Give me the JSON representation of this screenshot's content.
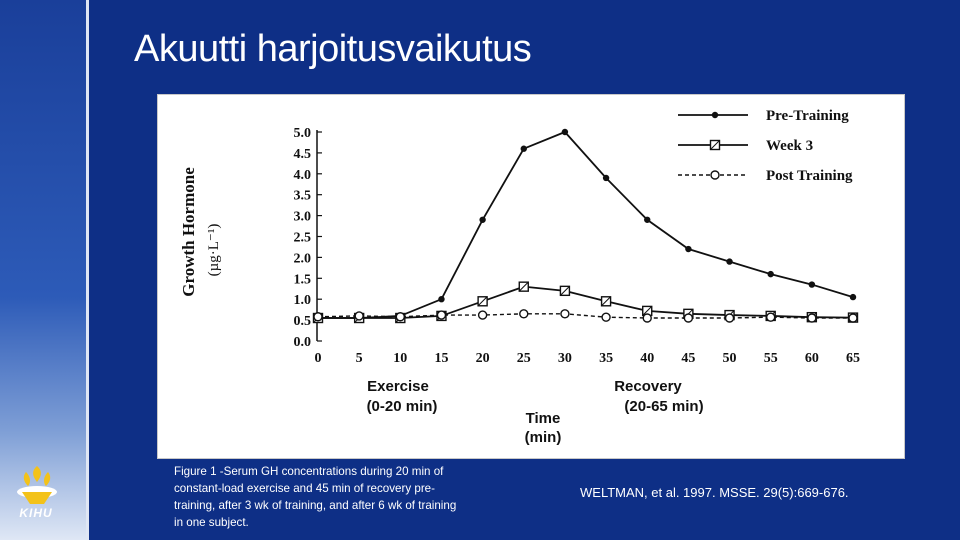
{
  "slide": {
    "title": "Akuutti harjoitusvaikutus",
    "caption": "Figure 1 -Serum GH concentrations during 20 min of constant-load exercise and 45 min of recovery pre-training, after 3 wk of training, and after 6 wk of training in one subject.",
    "citation": "WELTMAN, et al. 1997. MSSE. 29(5):669-676.",
    "logo_text": "KIHU"
  },
  "colors": {
    "background": "#0e2f86",
    "text": "#ffffff",
    "plot_ink": "#111111"
  },
  "chart_data": {
    "type": "line",
    "ylabel": "Growth Hormone",
    "yunit": "(µg·L⁻¹)",
    "xlabel": "Time",
    "xunit": "(min)",
    "annotations": [
      {
        "line1": "Exercise",
        "line2": "(0-20 min)"
      },
      {
        "line1": "Recovery",
        "line2": "(20-65 min)"
      }
    ],
    "x": [
      0,
      5,
      10,
      15,
      20,
      25,
      30,
      35,
      40,
      45,
      50,
      55,
      60,
      65
    ],
    "xticks": [
      "0",
      "5",
      "10",
      "15",
      "20",
      "25",
      "30",
      "35",
      "40",
      "45",
      "50",
      "55",
      "60",
      "65"
    ],
    "yticks": [
      "0.0",
      "0.5",
      "1.0",
      "1.5",
      "2.0",
      "2.5",
      "3.0",
      "3.5",
      "4.0",
      "4.5",
      "5.0"
    ],
    "ylim": [
      0,
      5
    ],
    "xlim": [
      0,
      65
    ],
    "legend_position": "top-right",
    "series": [
      {
        "name": "Pre-Training",
        "marker": "filled-circle",
        "dash": "solid",
        "values": [
          0.55,
          0.55,
          0.6,
          1.0,
          2.9,
          4.6,
          5.0,
          3.9,
          2.9,
          2.2,
          1.9,
          1.6,
          1.35,
          1.05
        ]
      },
      {
        "name": "Week 3",
        "marker": "square",
        "dash": "solid",
        "values": [
          0.55,
          0.55,
          0.55,
          0.6,
          0.95,
          1.3,
          1.2,
          0.95,
          0.72,
          0.65,
          0.62,
          0.6,
          0.57,
          0.56
        ]
      },
      {
        "name": "Post Training",
        "marker": "open-circle",
        "dash": "dashed",
        "values": [
          0.58,
          0.6,
          0.58,
          0.62,
          0.62,
          0.65,
          0.65,
          0.57,
          0.55,
          0.55,
          0.55,
          0.57,
          0.55,
          0.55
        ]
      }
    ]
  }
}
